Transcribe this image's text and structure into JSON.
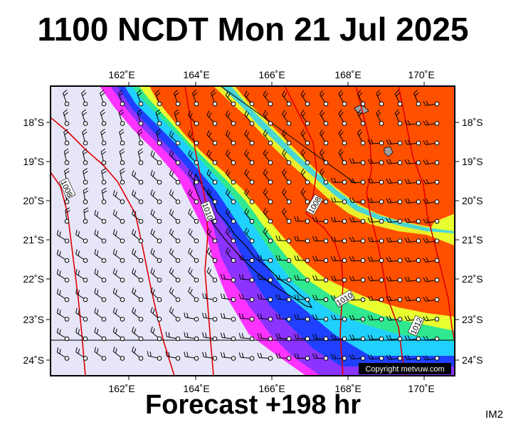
{
  "title": "1100 NCDT Mon 21 Jul 2025",
  "forecast": "Forecast +198 hr",
  "product_code": "IM2",
  "copyright": "Copyright metvuw.com",
  "map": {
    "lon_range": [
      160.3,
      170.9
    ],
    "lat_range": [
      -17.1,
      -24.4
    ],
    "lon_ticks": [
      "162˚E",
      "164˚E",
      "166˚E",
      "168˚E",
      "170˚E"
    ],
    "lat_ticks": [
      "18˚S",
      "19˚S",
      "20˚S",
      "21˚S",
      "22˚S",
      "23˚S",
      "24˚S"
    ],
    "isobar_labels": [
      "1008",
      "1008",
      "1010",
      "1010",
      "1012"
    ],
    "colors": {
      "background": "#e6e6f8",
      "magenta": "#ff33ff",
      "purple": "#8c33ff",
      "blue": "#2040ff",
      "cyan": "#20d0ff",
      "green": "#30e890",
      "yellow": "#e8ff30",
      "orange": "#ff5000",
      "isobar": "#e00000"
    }
  }
}
